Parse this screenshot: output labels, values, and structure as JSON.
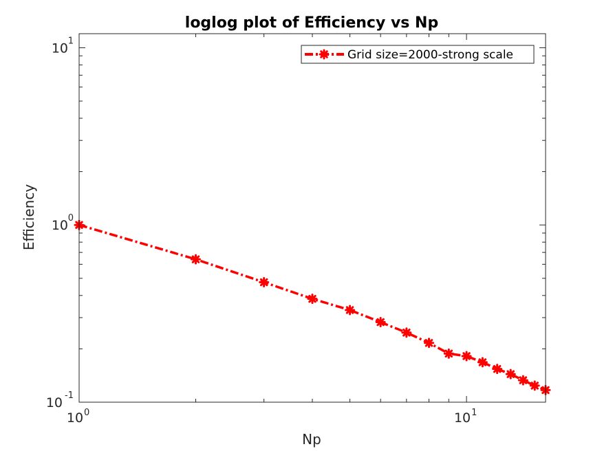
{
  "chart_data": {
    "type": "line",
    "title": "loglog plot of Efficiency vs Np",
    "xlabel": "Np",
    "ylabel": "Efficiency",
    "x_scale": "log",
    "y_scale": "log",
    "xlim": [
      1,
      16
    ],
    "ylim": [
      0.1,
      12
    ],
    "grid": false,
    "legend_position": "top-right",
    "x_ticks": [
      {
        "base": "10",
        "exp": "0",
        "value": 1
      },
      {
        "base": "10",
        "exp": "1",
        "value": 10
      }
    ],
    "y_ticks": [
      {
        "base": "10",
        "exp": "-1",
        "value": 0.1
      },
      {
        "base": "10",
        "exp": "0",
        "value": 1
      },
      {
        "base": "10",
        "exp": "1",
        "value": 10
      }
    ],
    "series": [
      {
        "name": "Grid size=2000-strong scale",
        "color": "#ff0000",
        "line_style": "dash-dot",
        "marker": "asterisk",
        "x": [
          1,
          2,
          3,
          4,
          5,
          6,
          7,
          8,
          9,
          10,
          11,
          12,
          13,
          14,
          15,
          16
        ],
        "y": [
          1.0,
          0.64,
          0.475,
          0.383,
          0.331,
          0.283,
          0.247,
          0.216,
          0.188,
          0.182,
          0.168,
          0.154,
          0.144,
          0.133,
          0.124,
          0.117
        ]
      }
    ]
  }
}
